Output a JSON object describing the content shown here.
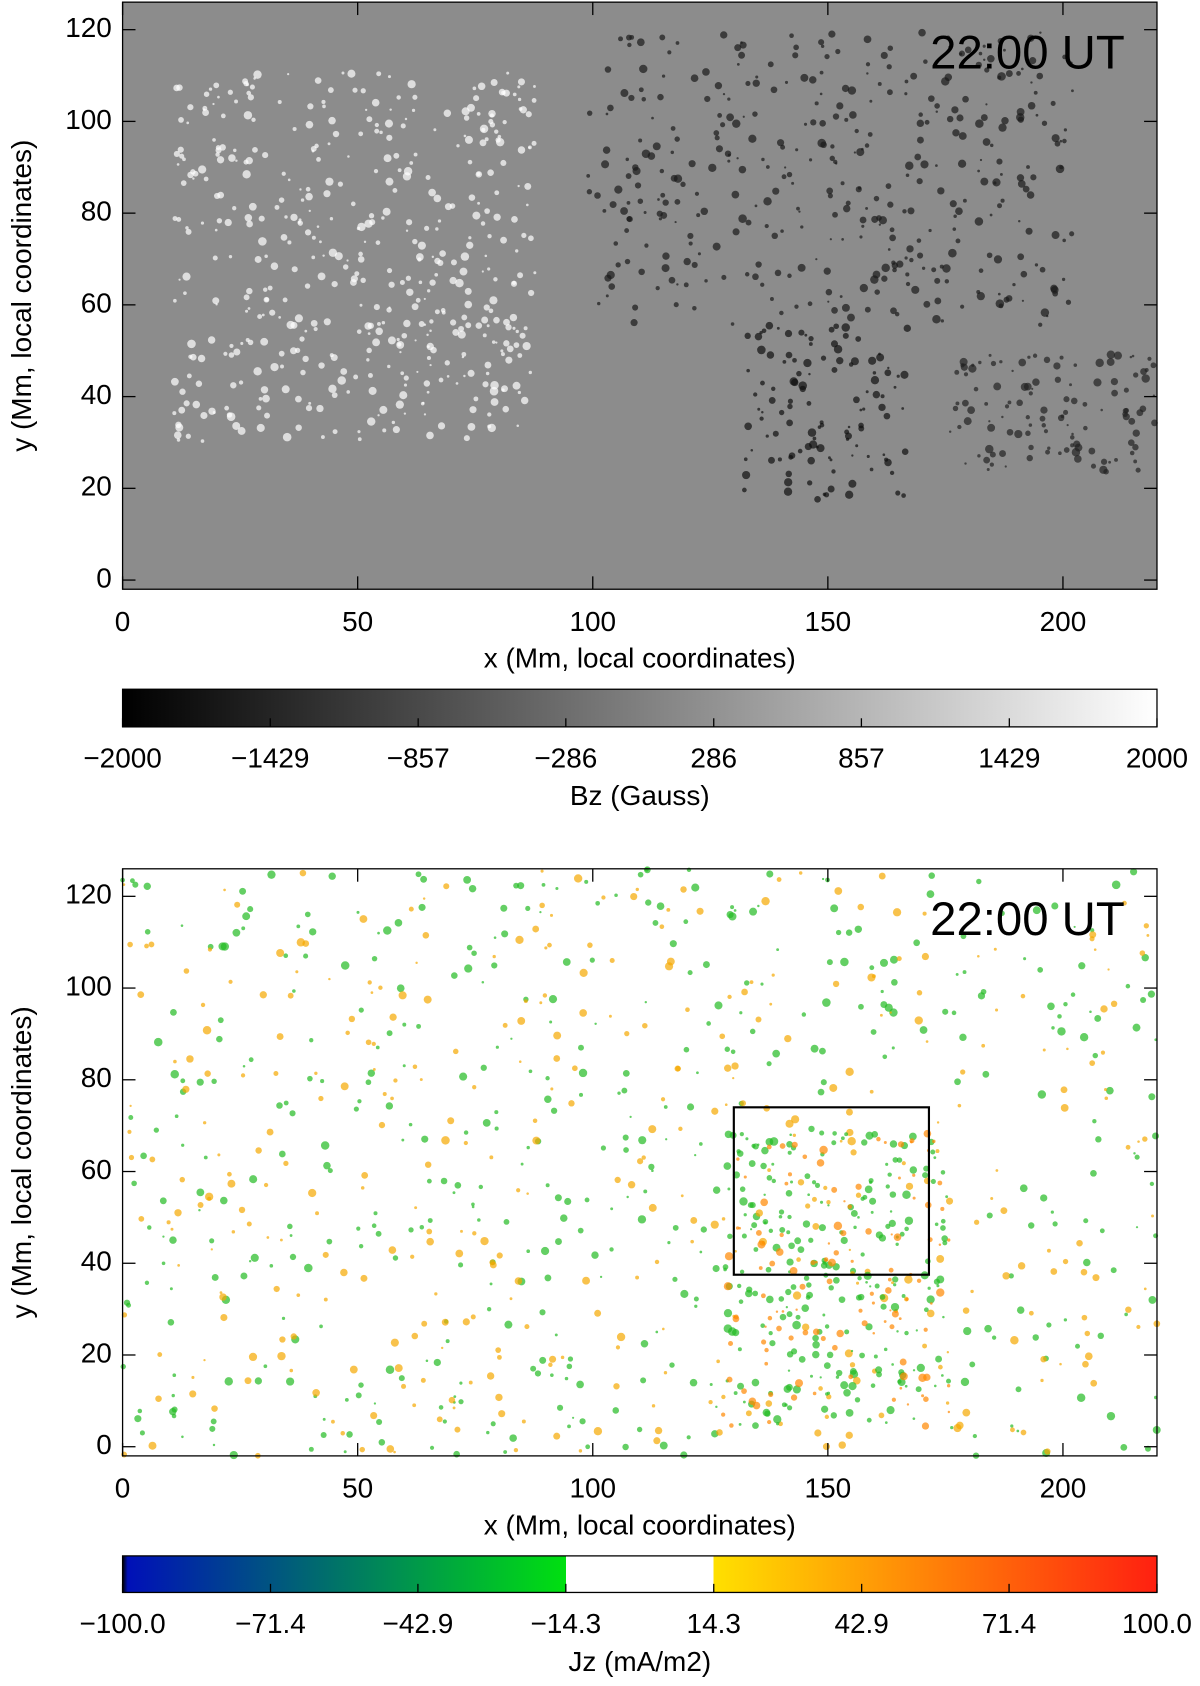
{
  "chart_data": [
    {
      "type": "image",
      "annotation": "22:00 UT",
      "xlabel": "x (Mm, local coordinates)",
      "ylabel": "y (Mm, local coordinates)",
      "xlim": [
        0,
        220
      ],
      "ylim": [
        -2,
        126
      ],
      "xticks": [
        0,
        50,
        100,
        150,
        200
      ],
      "yticks": [
        0,
        20,
        40,
        60,
        80,
        100,
        120
      ],
      "background": "#8c8c8c",
      "colorbar": {
        "label": "Bz (Gauss)",
        "lim": [
          -2000,
          2000
        ],
        "ticks": [
          {
            "value": -2000,
            "label": "−2000"
          },
          {
            "value": -1429,
            "label": "−1429"
          },
          {
            "value": -857,
            "label": "−857"
          },
          {
            "value": -286,
            "label": "−286"
          },
          286,
          857,
          1429,
          2000
        ],
        "stops": [
          {
            "value": -2000,
            "color": "#000000"
          },
          {
            "value": 2000,
            "color": "#ffffff"
          }
        ]
      }
    },
    {
      "type": "image",
      "annotation": "22:00 UT",
      "xlabel": "x (Mm, local coordinates)",
      "ylabel": "y (Mm, local coordinates)",
      "xlim": [
        0,
        220
      ],
      "ylim": [
        -2,
        126
      ],
      "xticks": [
        0,
        50,
        100,
        150,
        200
      ],
      "yticks": [
        0,
        20,
        40,
        60,
        80,
        100,
        120
      ],
      "background": "#ffffff",
      "box": {
        "x": [
          130,
          171.5
        ],
        "y": [
          37.5,
          74
        ]
      },
      "colorbar": {
        "label": "Jz (mA/m2)",
        "lim": [
          -100,
          100
        ],
        "ticks": [
          {
            "value": -100,
            "label": "−100.0"
          },
          {
            "value": -71.4,
            "label": "−71.4"
          },
          {
            "value": -42.9,
            "label": "−42.9"
          },
          {
            "value": -14.3,
            "label": "−14.3"
          },
          14.3,
          42.9,
          71.4,
          {
            "value": 100,
            "label": "100.0"
          }
        ],
        "stops": [
          {
            "value": -100,
            "color": "#000000"
          },
          {
            "value": -99,
            "color": "#0010b8"
          },
          {
            "value": -14.3,
            "color": "#00e010"
          },
          {
            "value": -14.3,
            "color": "#ffffff"
          },
          {
            "value": 14.3,
            "color": "#ffffff"
          },
          {
            "value": 14.3,
            "color": "#ffe000"
          },
          {
            "value": 100,
            "color": "#ff2010"
          }
        ]
      }
    }
  ]
}
